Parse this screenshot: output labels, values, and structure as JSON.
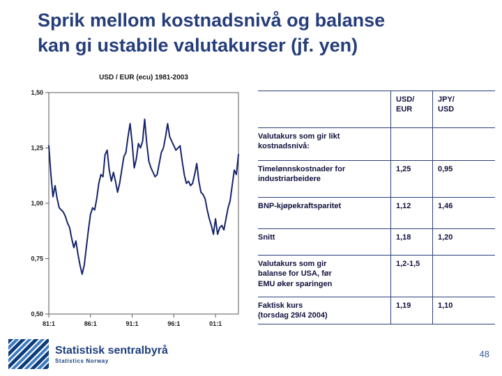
{
  "title": "Sprik mellom kostnadsnivå og balanse\nkan gi ustabile valutakurser (jf. yen)",
  "chart_data": {
    "type": "line",
    "title": "USD / EUR (ecu) 1981-2003",
    "frequency": "quarterly",
    "x_start": "1981:1",
    "x_end": "2003:4",
    "ylim": [
      0.5,
      1.5
    ],
    "grid": false,
    "line_color": "#16246b",
    "y_ticks": [
      {
        "v": 1.5,
        "label": "1,50"
      },
      {
        "v": 1.25,
        "label": "1,25"
      },
      {
        "v": 1.0,
        "label": "1,00"
      },
      {
        "v": 0.75,
        "label": "0,75"
      },
      {
        "v": 0.5,
        "label": "0,50"
      }
    ],
    "x_ticks": [
      {
        "i": 0,
        "label": "81:1"
      },
      {
        "i": 20,
        "label": "86:1"
      },
      {
        "i": 40,
        "label": "91:1"
      },
      {
        "i": 60,
        "label": "96:1"
      },
      {
        "i": 80,
        "label": "01:1"
      }
    ],
    "values": [
      1.26,
      1.13,
      1.03,
      1.08,
      1.02,
      0.98,
      0.97,
      0.96,
      0.94,
      0.91,
      0.89,
      0.84,
      0.8,
      0.83,
      0.77,
      0.72,
      0.68,
      0.72,
      0.8,
      0.88,
      0.95,
      0.98,
      0.97,
      1.02,
      1.09,
      1.13,
      1.12,
      1.22,
      1.24,
      1.15,
      1.1,
      1.14,
      1.1,
      1.05,
      1.09,
      1.15,
      1.21,
      1.23,
      1.3,
      1.36,
      1.27,
      1.16,
      1.2,
      1.27,
      1.25,
      1.28,
      1.38,
      1.27,
      1.19,
      1.16,
      1.14,
      1.12,
      1.13,
      1.18,
      1.23,
      1.25,
      1.3,
      1.36,
      1.3,
      1.28,
      1.26,
      1.24,
      1.25,
      1.26,
      1.19,
      1.13,
      1.09,
      1.1,
      1.08,
      1.09,
      1.13,
      1.18,
      1.1,
      1.05,
      1.04,
      1.02,
      0.97,
      0.93,
      0.9,
      0.86,
      0.93,
      0.86,
      0.89,
      0.9,
      0.88,
      0.93,
      0.98,
      1.01,
      1.08,
      1.15,
      1.13,
      1.22
    ]
  },
  "table": {
    "col_headers": {
      "usd_eur": "USD/\nEUR",
      "jpy_usd": "JPY/\nUSD"
    },
    "rows": [
      {
        "label": "Valutakurs som gir likt\nkostnadsnivå:",
        "usd_eur": "",
        "jpy_usd": ""
      },
      {
        "label": "Timelønnskostnader for\nindustriarbeidere",
        "usd_eur": "1,25",
        "jpy_usd": "0,95"
      },
      {
        "label": "BNP-kjøpekraftsparitet",
        "usd_eur": "1,12",
        "jpy_usd": "1,46"
      },
      {
        "label": "Snitt",
        "usd_eur": "1,18",
        "jpy_usd": "1,20"
      },
      {
        "label": "Valutakurs som gir\nbalanse for USA, før\nEMU øker sparingen",
        "usd_eur": "1,2-1,5",
        "jpy_usd": ""
      },
      {
        "label": "Faktisk kurs\n(torsdag 29/4 2004)",
        "usd_eur": "1,19",
        "jpy_usd": "1,10"
      }
    ]
  },
  "footer": {
    "org_name": "Statistisk sentralbyrå",
    "org_name_en": "Statistics Norway"
  },
  "page_number": "48",
  "colors": {
    "title_text": "#253d7a",
    "table_text": "#10103c",
    "table_lines": "#2b3e79",
    "chart_line": "#16246b",
    "logo_blue": "#0d3b7c",
    "footer_text": "#1c3f7c"
  }
}
